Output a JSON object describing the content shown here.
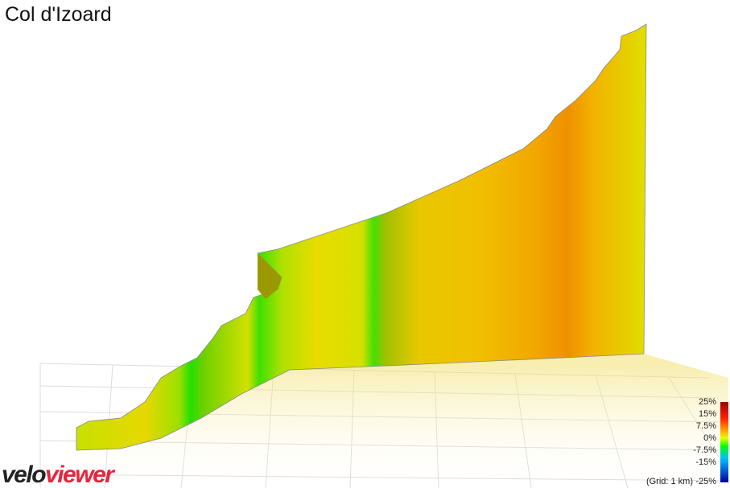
{
  "title": "Col d'Izoard",
  "legend": {
    "labels": [
      "25%",
      "15%",
      "7.5%",
      "0%",
      "-7.5%",
      "-15%"
    ],
    "grid_note": "(Grid: 1 km)",
    "bottom_label": "-25%"
  },
  "logo": {
    "part1": "velo",
    "part2": "viewer"
  }
}
